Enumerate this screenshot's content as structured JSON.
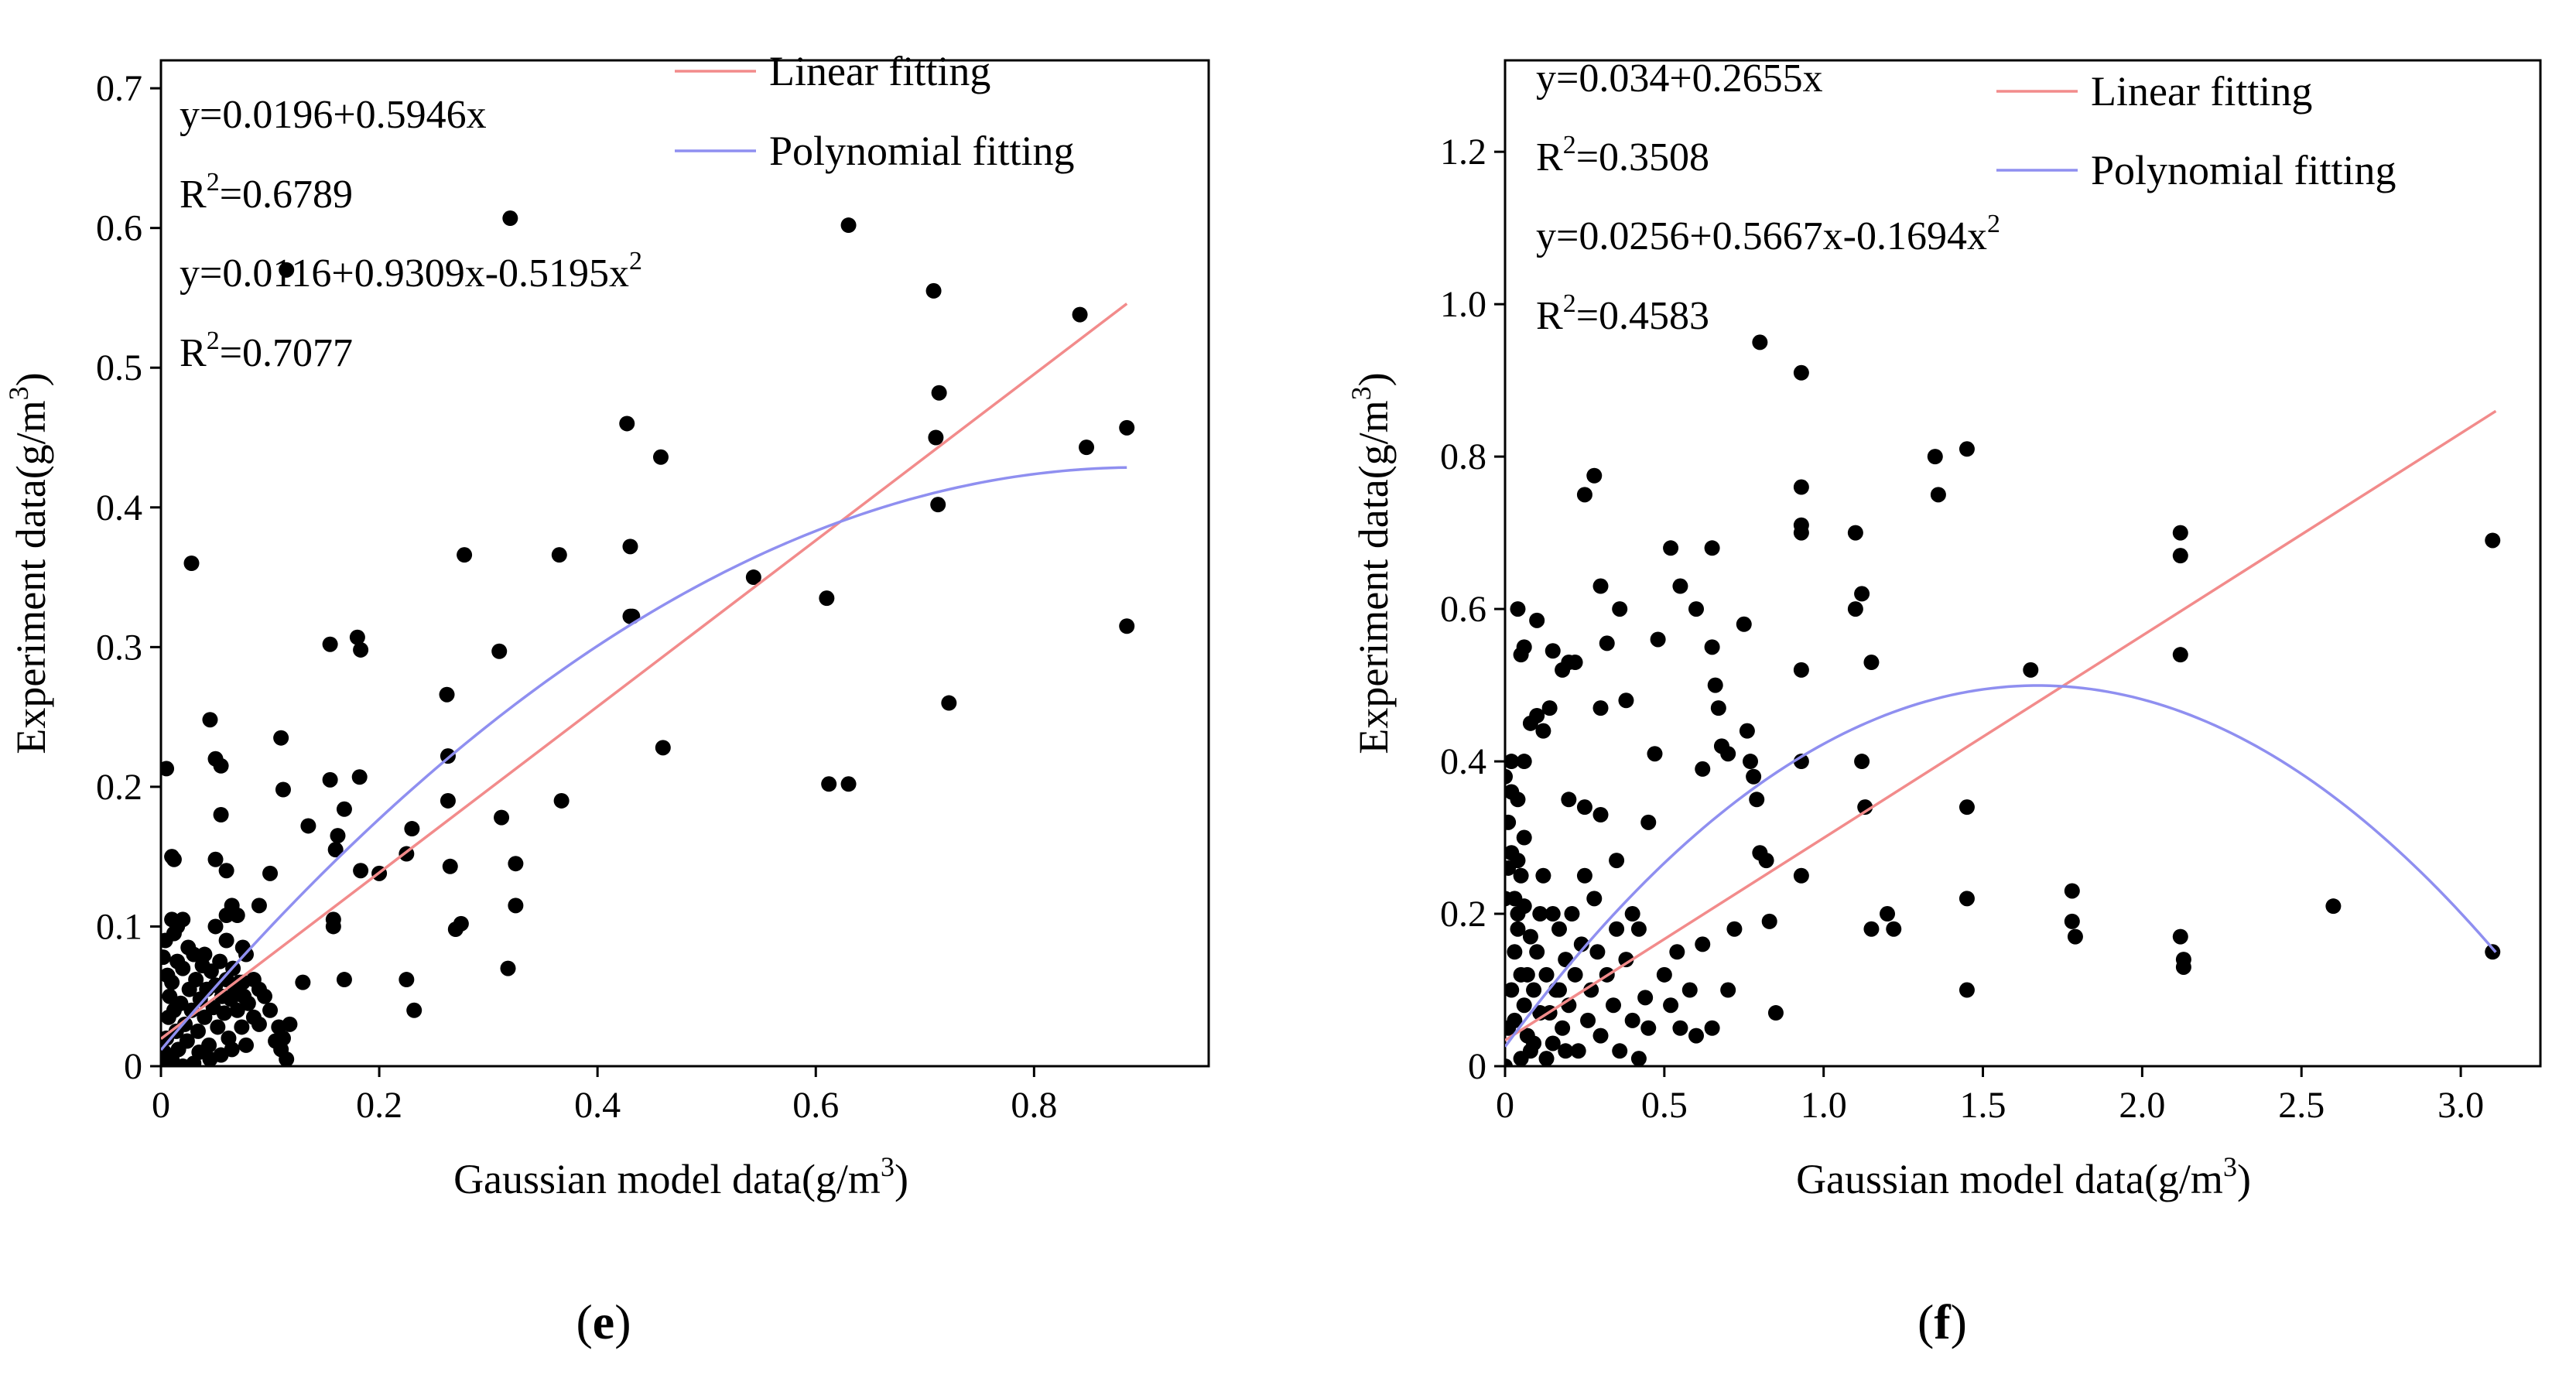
{
  "chart_data": [
    {
      "type": "scatter",
      "panel_prefix": "(",
      "panel_letter": "e",
      "panel_suffix": ")",
      "xlabel": "Gaussian model data(g/m",
      "ylabel": "Experiment data(g/m",
      "unit_sup": "3",
      "unit_close": ")",
      "xlim": [
        0,
        0.96
      ],
      "ylim": [
        0,
        0.72
      ],
      "xticks": [
        0,
        0.2,
        0.4,
        0.6,
        0.8
      ],
      "xtick_labels": [
        "0",
        "0.2",
        "0.4",
        "0.6",
        "0.8"
      ],
      "yticks": [
        0,
        0.1,
        0.2,
        0.3,
        0.4,
        0.5,
        0.6,
        0.7
      ],
      "ytick_labels": [
        "0",
        "0.1",
        "0.2",
        "0.3",
        "0.4",
        "0.5",
        "0.6",
        "0.7"
      ],
      "equations": [
        {
          "text": "y=0.0196+0.5946x",
          "sup": ""
        },
        {
          "text": "R",
          "sup": "2",
          "tail": "=0.6789"
        },
        {
          "text": "y=0.0116+0.9309x-0.5195x",
          "sup": "2",
          "tail": ""
        },
        {
          "text": "R",
          "sup": "2",
          "tail": "=0.7077"
        }
      ],
      "legend": [
        {
          "label": "Linear fitting",
          "color": "#f28b8b"
        },
        {
          "label": "Polynomial fitting",
          "color": "#8f8ff0"
        }
      ],
      "linear_fit": {
        "intercept": 0.0196,
        "slope": 0.5946,
        "x_range": [
          0,
          0.885
        ]
      },
      "poly_fit": {
        "c0": 0.0116,
        "c1": 0.9309,
        "c2": -0.5195,
        "x_range": [
          0,
          0.885
        ]
      },
      "points": [
        [
          0.005,
          0.213
        ],
        [
          0.01,
          0.15
        ],
        [
          0.012,
          0.148
        ],
        [
          0.01,
          0.105
        ],
        [
          0.012,
          0.095
        ],
        [
          0.015,
          0.1
        ],
        [
          0.02,
          0.105
        ],
        [
          0.028,
          0.36
        ],
        [
          0.045,
          0.248
        ],
        [
          0.05,
          0.22
        ],
        [
          0.055,
          0.215
        ],
        [
          0.05,
          0.148
        ],
        [
          0.055,
          0.18
        ],
        [
          0.06,
          0.14
        ],
        [
          0.065,
          0.115
        ],
        [
          0.06,
          0.108
        ],
        [
          0.07,
          0.108
        ],
        [
          0.075,
          0.085
        ],
        [
          0.078,
          0.08
        ],
        [
          0.09,
          0.115
        ],
        [
          0.1,
          0.138
        ],
        [
          0.11,
          0.235
        ],
        [
          0.112,
          0.198
        ],
        [
          0.115,
          0.57
        ],
        [
          0.135,
          0.172
        ],
        [
          0.155,
          0.302
        ],
        [
          0.155,
          0.205
        ],
        [
          0.158,
          0.1
        ],
        [
          0.158,
          0.105
        ],
        [
          0.16,
          0.155
        ],
        [
          0.162,
          0.165
        ],
        [
          0.168,
          0.184
        ],
        [
          0.168,
          0.062
        ],
        [
          0.18,
          0.307
        ],
        [
          0.183,
          0.298
        ],
        [
          0.182,
          0.207
        ],
        [
          0.183,
          0.14
        ],
        [
          0.2,
          0.138
        ],
        [
          0.225,
          0.062
        ],
        [
          0.225,
          0.152
        ],
        [
          0.23,
          0.17
        ],
        [
          0.232,
          0.04
        ],
        [
          0.262,
          0.266
        ],
        [
          0.263,
          0.222
        ],
        [
          0.263,
          0.19
        ],
        [
          0.265,
          0.143
        ],
        [
          0.27,
          0.098
        ],
        [
          0.275,
          0.102
        ],
        [
          0.278,
          0.366
        ],
        [
          0.31,
          0.297
        ],
        [
          0.312,
          0.178
        ],
        [
          0.318,
          0.07
        ],
        [
          0.32,
          0.607
        ],
        [
          0.325,
          0.145
        ],
        [
          0.325,
          0.115
        ],
        [
          0.365,
          0.366
        ],
        [
          0.367,
          0.19
        ],
        [
          0.427,
          0.46
        ],
        [
          0.43,
          0.322
        ],
        [
          0.43,
          0.372
        ],
        [
          0.432,
          0.322
        ],
        [
          0.458,
          0.436
        ],
        [
          0.46,
          0.228
        ],
        [
          0.543,
          0.35
        ],
        [
          0.61,
          0.335
        ],
        [
          0.612,
          0.202
        ],
        [
          0.63,
          0.602
        ],
        [
          0.63,
          0.202
        ],
        [
          0.708,
          0.555
        ],
        [
          0.71,
          0.45
        ],
        [
          0.712,
          0.402
        ],
        [
          0.713,
          0.482
        ],
        [
          0.722,
          0.26
        ],
        [
          0.842,
          0.538
        ],
        [
          0.848,
          0.443
        ],
        [
          0.885,
          0.457
        ],
        [
          0.885,
          0.315
        ],
        [
          0.0,
          0.0
        ],
        [
          0.003,
          0.01
        ],
        [
          0.005,
          0.02
        ],
        [
          0.007,
          0.035
        ],
        [
          0.008,
          0.05
        ],
        [
          0.01,
          0.06
        ],
        [
          0.012,
          0.04
        ],
        [
          0.014,
          0.025
        ],
        [
          0.016,
          0.012
        ],
        [
          0.018,
          0.045
        ],
        [
          0.02,
          0.07
        ],
        [
          0.022,
          0.03
        ],
        [
          0.024,
          0.018
        ],
        [
          0.026,
          0.055
        ],
        [
          0.028,
          0.04
        ],
        [
          0.03,
          0.08
        ],
        [
          0.032,
          0.062
        ],
        [
          0.034,
          0.025
        ],
        [
          0.036,
          0.048
        ],
        [
          0.038,
          0.072
        ],
        [
          0.04,
          0.035
        ],
        [
          0.042,
          0.055
        ],
        [
          0.044,
          0.015
        ],
        [
          0.046,
          0.068
        ],
        [
          0.048,
          0.042
        ],
        [
          0.05,
          0.058
        ],
        [
          0.052,
          0.028
        ],
        [
          0.054,
          0.075
        ],
        [
          0.056,
          0.05
        ],
        [
          0.058,
          0.038
        ],
        [
          0.06,
          0.062
        ],
        [
          0.062,
          0.02
        ],
        [
          0.064,
          0.048
        ],
        [
          0.066,
          0.07
        ],
        [
          0.068,
          0.055
        ],
        [
          0.07,
          0.04
        ],
        [
          0.072,
          0.06
        ],
        [
          0.074,
          0.028
        ],
        [
          0.076,
          0.05
        ],
        [
          0.078,
          0.015
        ],
        [
          0.08,
          0.045
        ],
        [
          0.085,
          0.035
        ],
        [
          0.09,
          0.055
        ],
        [
          0.095,
          0.05
        ],
        [
          0.1,
          0.04
        ],
        [
          0.105,
          0.018
        ],
        [
          0.108,
          0.028
        ],
        [
          0.11,
          0.012
        ],
        [
          0.112,
          0.02
        ],
        [
          0.115,
          0.005
        ],
        [
          0.118,
          0.03
        ],
        [
          0.002,
          0.078
        ],
        [
          0.004,
          0.09
        ],
        [
          0.006,
          0.065
        ],
        [
          0.015,
          0.075
        ],
        [
          0.025,
          0.085
        ],
        [
          0.035,
          0.01
        ],
        [
          0.045,
          0.005
        ],
        [
          0.055,
          0.008
        ],
        [
          0.065,
          0.012
        ],
        [
          0.075,
          0.06
        ],
        [
          0.085,
          0.062
        ],
        [
          0.09,
          0.03
        ],
        [
          0.13,
          0.06
        ],
        [
          0.02,
          0.0
        ],
        [
          0.01,
          0.005
        ],
        [
          0.03,
          0.002
        ],
        [
          0.05,
          0.1
        ],
        [
          0.06,
          0.09
        ],
        [
          0.04,
          0.08
        ]
      ]
    },
    {
      "type": "scatter",
      "panel_prefix": "(",
      "panel_letter": "f",
      "panel_suffix": ")",
      "xlabel": "Gaussian model data(g/m",
      "ylabel": "Experiment data(g/m",
      "unit_sup": "3",
      "unit_close": ")",
      "xlim": [
        0,
        3.25
      ],
      "ylim": [
        0,
        1.32
      ],
      "xticks": [
        0,
        0.5,
        1.0,
        1.5,
        2.0,
        2.5,
        3.0
      ],
      "xtick_labels": [
        "0",
        "0.5",
        "1.0",
        "1.5",
        "2.0",
        "2.5",
        "3.0"
      ],
      "yticks": [
        0,
        0.2,
        0.4,
        0.6,
        0.8,
        1.0,
        1.2
      ],
      "ytick_labels": [
        "0",
        "0.2",
        "0.4",
        "0.6",
        "0.8",
        "1.0",
        "1.2"
      ],
      "equations": [
        {
          "text": "y=0.034+0.2655x",
          "sup": ""
        },
        {
          "text": "R",
          "sup": "2",
          "tail": "=0.3508"
        },
        {
          "text": "y=0.0256+0.5667x-0.1694x",
          "sup": "2",
          "tail": ""
        },
        {
          "text": "R",
          "sup": "2",
          "tail": "=0.4583"
        }
      ],
      "legend": [
        {
          "label": "Linear fitting",
          "color": "#f28b8b"
        },
        {
          "label": "Polynomial fitting",
          "color": "#8f8ff0"
        }
      ],
      "linear_fit": {
        "intercept": 0.034,
        "slope": 0.2655,
        "x_range": [
          0,
          3.11
        ]
      },
      "poly_fit": {
        "c0": 0.0256,
        "c1": 0.5667,
        "c2": -0.1694,
        "x_range": [
          0,
          3.11
        ]
      },
      "points": [
        [
          0.04,
          0.6
        ],
        [
          0.05,
          0.54
        ],
        [
          0.06,
          0.55
        ],
        [
          0.1,
          0.585
        ],
        [
          0.15,
          0.545
        ],
        [
          0.18,
          0.52
        ],
        [
          0.2,
          0.53
        ],
        [
          0.22,
          0.53
        ],
        [
          0.25,
          0.75
        ],
        [
          0.28,
          0.775
        ],
        [
          0.3,
          0.63
        ],
        [
          0.32,
          0.555
        ],
        [
          0.36,
          0.6
        ],
        [
          0.38,
          0.48
        ],
        [
          0.3,
          0.47
        ],
        [
          0.02,
          0.4
        ],
        [
          0.04,
          0.35
        ],
        [
          0.06,
          0.4
        ],
        [
          0.08,
          0.45
        ],
        [
          0.1,
          0.46
        ],
        [
          0.12,
          0.44
        ],
        [
          0.14,
          0.47
        ],
        [
          0.2,
          0.35
        ],
        [
          0.25,
          0.34
        ],
        [
          0.3,
          0.33
        ],
        [
          0.35,
          0.27
        ],
        [
          0.4,
          0.2
        ],
        [
          0.42,
          0.18
        ],
        [
          0.45,
          0.32
        ],
        [
          0.47,
          0.41
        ],
        [
          0.48,
          0.56
        ],
        [
          0.52,
          0.68
        ],
        [
          0.55,
          0.63
        ],
        [
          0.6,
          0.6
        ],
        [
          0.65,
          0.68
        ],
        [
          0.65,
          0.55
        ],
        [
          0.66,
          0.5
        ],
        [
          0.67,
          0.47
        ],
        [
          0.68,
          0.42
        ],
        [
          0.7,
          0.41
        ],
        [
          0.62,
          0.39
        ],
        [
          0.75,
          0.58
        ],
        [
          0.76,
          0.44
        ],
        [
          0.77,
          0.4
        ],
        [
          0.78,
          0.38
        ],
        [
          0.79,
          0.35
        ],
        [
          0.8,
          0.95
        ],
        [
          0.8,
          0.28
        ],
        [
          0.82,
          0.27
        ],
        [
          0.83,
          0.19
        ],
        [
          0.85,
          0.07
        ],
        [
          0.93,
          0.91
        ],
        [
          0.93,
          0.76
        ],
        [
          0.93,
          0.71
        ],
        [
          0.93,
          0.7
        ],
        [
          0.93,
          0.52
        ],
        [
          0.93,
          0.4
        ],
        [
          0.93,
          0.25
        ],
        [
          1.1,
          0.7
        ],
        [
          1.1,
          0.6
        ],
        [
          1.12,
          0.62
        ],
        [
          1.12,
          0.4
        ],
        [
          1.13,
          0.34
        ],
        [
          1.15,
          0.53
        ],
        [
          1.15,
          0.18
        ],
        [
          1.2,
          0.2
        ],
        [
          1.22,
          0.18
        ],
        [
          1.35,
          0.8
        ],
        [
          1.36,
          0.75
        ],
        [
          1.45,
          0.81
        ],
        [
          1.45,
          0.34
        ],
        [
          1.45,
          0.22
        ],
        [
          1.45,
          0.1
        ],
        [
          1.65,
          0.52
        ],
        [
          1.78,
          0.23
        ],
        [
          1.78,
          0.19
        ],
        [
          1.79,
          0.17
        ],
        [
          2.12,
          0.7
        ],
        [
          2.12,
          0.67
        ],
        [
          2.12,
          0.54
        ],
        [
          2.12,
          0.17
        ],
        [
          2.13,
          0.14
        ],
        [
          2.13,
          0.13
        ],
        [
          2.6,
          0.21
        ],
        [
          3.1,
          0.69
        ],
        [
          3.1,
          0.15
        ],
        [
          0.0,
          0.0
        ],
        [
          0.01,
          0.05
        ],
        [
          0.02,
          0.1
        ],
        [
          0.03,
          0.15
        ],
        [
          0.04,
          0.2
        ],
        [
          0.05,
          0.25
        ],
        [
          0.06,
          0.3
        ],
        [
          0.01,
          0.32
        ],
        [
          0.02,
          0.28
        ],
        [
          0.03,
          0.22
        ],
        [
          0.04,
          0.18
        ],
        [
          0.05,
          0.12
        ],
        [
          0.06,
          0.08
        ],
        [
          0.07,
          0.04
        ],
        [
          0.08,
          0.02
        ],
        [
          0.09,
          0.1
        ],
        [
          0.1,
          0.15
        ],
        [
          0.11,
          0.2
        ],
        [
          0.12,
          0.25
        ],
        [
          0.13,
          0.12
        ],
        [
          0.14,
          0.07
        ],
        [
          0.15,
          0.03
        ],
        [
          0.16,
          0.1
        ],
        [
          0.17,
          0.18
        ],
        [
          0.18,
          0.05
        ],
        [
          0.19,
          0.14
        ],
        [
          0.2,
          0.08
        ],
        [
          0.21,
          0.2
        ],
        [
          0.22,
          0.12
        ],
        [
          0.23,
          0.02
        ],
        [
          0.24,
          0.16
        ],
        [
          0.25,
          0.25
        ],
        [
          0.26,
          0.06
        ],
        [
          0.27,
          0.1
        ],
        [
          0.28,
          0.22
        ],
        [
          0.29,
          0.15
        ],
        [
          0.3,
          0.04
        ],
        [
          0.32,
          0.12
        ],
        [
          0.34,
          0.08
        ],
        [
          0.35,
          0.18
        ],
        [
          0.36,
          0.02
        ],
        [
          0.38,
          0.14
        ],
        [
          0.4,
          0.06
        ],
        [
          0.42,
          0.01
        ],
        [
          0.44,
          0.09
        ],
        [
          0.45,
          0.05
        ],
        [
          0.5,
          0.12
        ],
        [
          0.52,
          0.08
        ],
        [
          0.54,
          0.15
        ],
        [
          0.55,
          0.05
        ],
        [
          0.58,
          0.1
        ],
        [
          0.6,
          0.04
        ],
        [
          0.62,
          0.16
        ],
        [
          0.65,
          0.05
        ],
        [
          0.7,
          0.1
        ],
        [
          0.72,
          0.18
        ],
        [
          0.0,
          0.38
        ],
        [
          0.02,
          0.36
        ],
        [
          0.01,
          0.26
        ],
        [
          0.0,
          0.22
        ],
        [
          0.03,
          0.06
        ],
        [
          0.05,
          0.01
        ],
        [
          0.07,
          0.12
        ],
        [
          0.09,
          0.03
        ],
        [
          0.11,
          0.07
        ],
        [
          0.13,
          0.01
        ],
        [
          0.08,
          0.17
        ],
        [
          0.06,
          0.21
        ],
        [
          0.04,
          0.27
        ],
        [
          0.15,
          0.2
        ],
        [
          0.17,
          0.1
        ],
        [
          0.19,
          0.02
        ]
      ]
    }
  ]
}
